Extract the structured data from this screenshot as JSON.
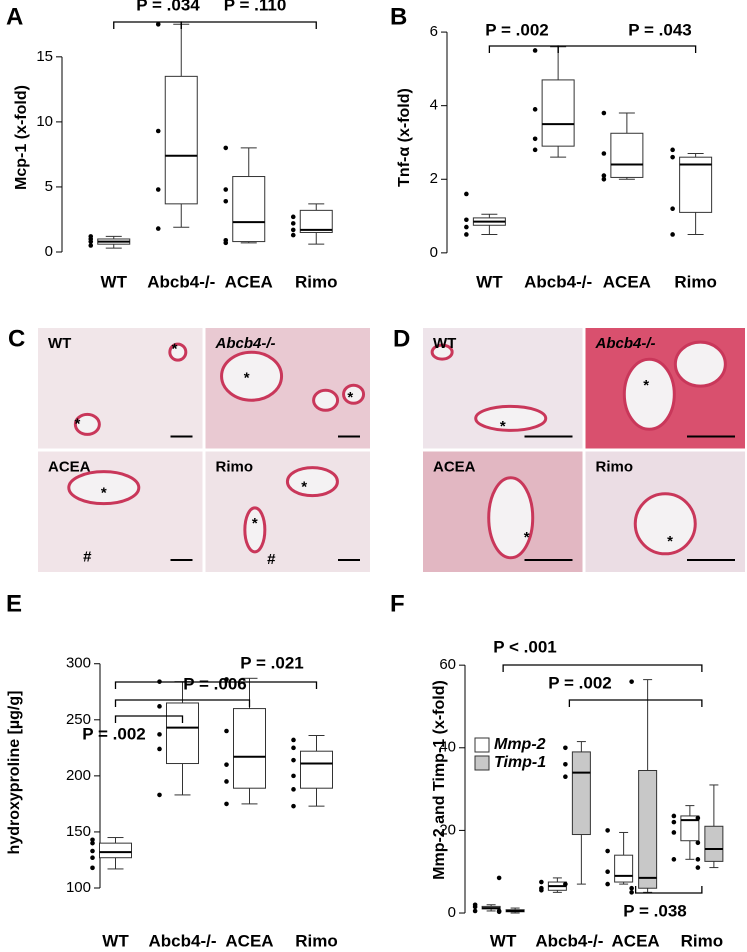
{
  "chart_data": [
    {
      "type": "box",
      "panel_label": "A",
      "y_label": "Mcp-1 (x-fold)",
      "categories": [
        "WT",
        "Abcb4-/-",
        "ACEA",
        "Rimo"
      ],
      "color": "#ffffff",
      "ylim": [
        -1,
        18.6
      ],
      "yticks": [
        0,
        5,
        10,
        15
      ],
      "annotations": [
        "P = .034",
        "P = .110"
      ],
      "boxes": [
        {
          "whisker_low": 0.3,
          "q1": 0.6,
          "median": 0.8,
          "q3": 1.0,
          "whisker_high": 1.2,
          "points": [
            0.5,
            0.8,
            1.0,
            1.2
          ]
        },
        {
          "whisker_low": 1.9,
          "q1": 3.7,
          "median": 7.4,
          "q3": 13.5,
          "whisker_high": 17.5,
          "points": [
            1.8,
            4.8,
            9.3,
            17.5
          ]
        },
        {
          "whisker_low": 0.7,
          "q1": 0.8,
          "median": 2.3,
          "q3": 5.8,
          "whisker_high": 8.0,
          "points": [
            0.7,
            0.9,
            3.9,
            4.8,
            8.0
          ]
        },
        {
          "whisker_low": 0.6,
          "q1": 1.5,
          "median": 1.7,
          "q3": 3.2,
          "whisker_high": 3.7,
          "points": [
            1.3,
            1.7,
            2.2,
            2.7
          ]
        }
      ]
    },
    {
      "type": "box",
      "panel_label": "B",
      "y_label": "Tnf-α (x-fold)",
      "categories": [
        "WT",
        "Abcb4-/-",
        "ACEA",
        "Rimo"
      ],
      "color": "#ffffff",
      "ylim": [
        -0.33,
        6.6
      ],
      "yticks": [
        0,
        2,
        4,
        6
      ],
      "annotations": [
        "P = .002",
        "P = .043"
      ],
      "boxes": [
        {
          "whisker_low": 0.5,
          "q1": 0.75,
          "median": 0.85,
          "q3": 0.95,
          "whisker_high": 1.05,
          "points": [
            0.5,
            0.7,
            0.9,
            1.6
          ]
        },
        {
          "whisker_low": 2.6,
          "q1": 2.9,
          "median": 3.5,
          "q3": 4.7,
          "whisker_high": 5.6,
          "points": [
            2.8,
            3.1,
            3.9,
            5.5
          ]
        },
        {
          "whisker_low": 2.0,
          "q1": 2.05,
          "median": 2.4,
          "q3": 3.25,
          "whisker_high": 3.8,
          "points": [
            2.0,
            2.1,
            2.7,
            3.8
          ]
        },
        {
          "whisker_low": 0.5,
          "q1": 1.1,
          "median": 2.4,
          "q3": 2.6,
          "whisker_high": 2.7,
          "points": [
            0.5,
            1.2,
            2.6,
            2.8
          ]
        }
      ]
    },
    {
      "type": "box",
      "panel_label": "E",
      "y_label": "hydroxyproline [µg/g]",
      "categories": [
        "WT",
        "Abcb4-/-",
        "ACEA",
        "Rimo"
      ],
      "color": "#ffffff",
      "ylim": [
        67,
        339
      ],
      "yticks": [
        100,
        150,
        200,
        250,
        300
      ],
      "annotations": [
        "P = .021",
        "P = .006",
        "P = .002"
      ],
      "boxes": [
        {
          "whisker_low": 117,
          "q1": 127,
          "median": 132,
          "q3": 140,
          "whisker_high": 145,
          "points": [
            118,
            127,
            133,
            140,
            143
          ]
        },
        {
          "whisker_low": 183,
          "q1": 211,
          "median": 243,
          "q3": 265,
          "whisker_high": 284,
          "points": [
            183,
            224,
            237,
            262,
            284
          ]
        },
        {
          "whisker_low": 175,
          "q1": 189,
          "median": 217,
          "q3": 260,
          "whisker_high": 287,
          "points": [
            175,
            195,
            210,
            240,
            286
          ]
        },
        {
          "whisker_low": 173,
          "q1": 189,
          "median": 211,
          "q3": 222,
          "whisker_high": 236,
          "points": [
            173,
            188,
            200,
            214,
            225,
            232
          ]
        }
      ]
    },
    {
      "type": "box",
      "panel_label": "F",
      "y_label": "Mmp-2 and Timp-1 (x-fold)",
      "categories": [
        "WT",
        "Abcb4-/-",
        "ACEA",
        "Rimo"
      ],
      "ylim": [
        -2.9,
        67.3
      ],
      "yticks": [
        0,
        20,
        40,
        60
      ],
      "annotations": [
        "P < .001",
        "P = .002",
        "P = .038"
      ],
      "series": [
        {
          "name": "Mmp-2",
          "color": "#ffffff",
          "boxes": [
            {
              "whisker_low": 0.5,
              "q1": 1.0,
              "median": 1.2,
              "q3": 1.6,
              "whisker_high": 2,
              "points": [
                0.5,
                1.5,
                2
              ]
            },
            {
              "whisker_low": 5,
              "q1": 5.5,
              "median": 6.5,
              "q3": 7.5,
              "whisker_high": 8.5,
              "points": [
                5.5,
                6,
                7.5
              ]
            },
            {
              "whisker_low": 7,
              "q1": 7.5,
              "median": 9,
              "q3": 14,
              "whisker_high": 19.5,
              "points": [
                7,
                10,
                15,
                20
              ]
            },
            {
              "whisker_low": 13,
              "q1": 17.5,
              "median": 22.5,
              "q3": 23.5,
              "whisker_high": 26,
              "points": [
                13,
                19.5,
                22,
                23.5
              ]
            }
          ]
        },
        {
          "name": "Timp-1",
          "color": "#c8c8c8",
          "boxes": [
            {
              "whisker_low": 0,
              "q1": 0.3,
              "median": 0.5,
              "q3": 0.8,
              "whisker_high": 1.2,
              "points": [
                0.3,
                0.5,
                8.5
              ]
            },
            {
              "whisker_low": 7,
              "q1": 19,
              "median": 34,
              "q3": 39,
              "whisker_high": 41.5,
              "points": [
                7,
                33,
                36,
                40
              ]
            },
            {
              "whisker_low": 5,
              "q1": 6,
              "median": 8.5,
              "q3": 34.5,
              "whisker_high": 56.5,
              "points": [
                5,
                6,
                56
              ]
            },
            {
              "whisker_low": 11,
              "q1": 12.5,
              "median": 15.5,
              "q3": 21,
              "whisker_high": 31,
              "points": [
                11,
                13,
                17,
                23
              ]
            }
          ]
        }
      ]
    }
  ],
  "micrographs": [
    {
      "panel_label": "C",
      "tiles": [
        {
          "label": "WT",
          "markers": [
            "*",
            "*"
          ]
        },
        {
          "label": "Abcb4-/-",
          "markers": [
            "*",
            "*"
          ]
        },
        {
          "label": "ACEA",
          "markers": [
            "*",
            "#"
          ]
        },
        {
          "label": "Rimo",
          "markers": [
            "*",
            "*",
            "#"
          ]
        }
      ]
    },
    {
      "panel_label": "D",
      "tiles": [
        {
          "label": "WT",
          "markers": [
            "*"
          ]
        },
        {
          "label": "Abcb4-/-",
          "markers": [
            "*"
          ]
        },
        {
          "label": "ACEA",
          "markers": [
            "*"
          ]
        },
        {
          "label": "Rimo",
          "markers": [
            "*"
          ]
        }
      ]
    }
  ]
}
